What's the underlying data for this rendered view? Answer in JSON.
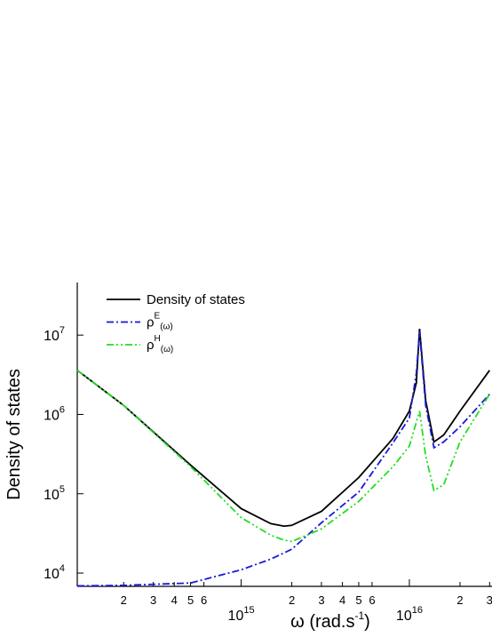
{
  "chart_data": {
    "type": "line",
    "ylabel": "Density of states",
    "xlabel": "ω (rad.s",
    "xlabel_exponent": "-1",
    "xlabel_suffix": ")",
    "xscale": "log",
    "yscale": "log",
    "legend": "upper left",
    "x": [
      106000000000000.0,
      200000000000000.0,
      500000000000000.0,
      1000000000000000.0,
      1500000000000000.0,
      1800000000000000.0,
      2000000000000000.0,
      3000000000000000.0,
      5000000000000000.0,
      8000000000000000.0,
      1e+16,
      1.1e+16,
      1.15e+16,
      1.25e+16,
      1.4e+16,
      1.6e+16,
      2e+16,
      3e+16
    ],
    "series": [
      {
        "name": "Density of states",
        "color": "#000000",
        "dash": "solid",
        "values": [
          3600000,
          1300000,
          230000,
          65000,
          42000,
          39000,
          40000,
          60000,
          160000,
          500000,
          1100000,
          2500000,
          12000000,
          1500000,
          450000,
          550000,
          1100000,
          3600000
        ]
      },
      {
        "name": "ρ",
        "superscript": "E",
        "subscript": "(ω)",
        "color": "#1a1ad8",
        "dash": "dashdot",
        "values": [
          6900,
          7000,
          7500,
          11000,
          15000,
          18000,
          20000,
          43000,
          105000,
          440000,
          900000,
          3300000,
          11000000,
          1300000,
          380000,
          450000,
          700000,
          1800000
        ]
      },
      {
        "name": "ρ",
        "superscript": "H",
        "subscript": "(ω)",
        "color": "#22dd22",
        "dash": "dashdotdot",
        "values": [
          3600000,
          1300000,
          220000,
          50000,
          30000,
          26000,
          25000,
          36000,
          80000,
          220000,
          400000,
          800000,
          1100000,
          300000,
          110000,
          130000,
          450000,
          1800000
        ]
      }
    ],
    "xlim": [
      106000000000000.0,
      3.1e+16
    ],
    "ylim": [
      6800,
      46000000
    ],
    "xticks": [
      {
        "value": 200000000000000.0,
        "label": "2"
      },
      {
        "value": 300000000000000.0,
        "label": "3"
      },
      {
        "value": 400000000000000.0,
        "label": "4"
      },
      {
        "value": 500000000000000.0,
        "label": "5"
      },
      {
        "value": 600000000000000.0,
        "label": "6"
      },
      {
        "value": 1000000000000000.0,
        "label": "10",
        "exponent": "15"
      },
      {
        "value": 2000000000000000.0,
        "label": "2"
      },
      {
        "value": 3000000000000000.0,
        "label": "3"
      },
      {
        "value": 4000000000000000.0,
        "label": "4"
      },
      {
        "value": 5000000000000000.0,
        "label": "5"
      },
      {
        "value": 6000000000000000.0,
        "label": "6"
      },
      {
        "value": 1e+16,
        "label": "10",
        "exponent": "16"
      },
      {
        "value": 2e+16,
        "label": "2"
      },
      {
        "value": 3e+16,
        "label": "3"
      }
    ],
    "yticks": [
      {
        "value": 10000,
        "label": "10",
        "exponent": "4"
      },
      {
        "value": 100000,
        "label": "10",
        "exponent": "5"
      },
      {
        "value": 1000000,
        "label": "10",
        "exponent": "6"
      },
      {
        "value": 10000000,
        "label": "10",
        "exponent": "7"
      }
    ]
  }
}
